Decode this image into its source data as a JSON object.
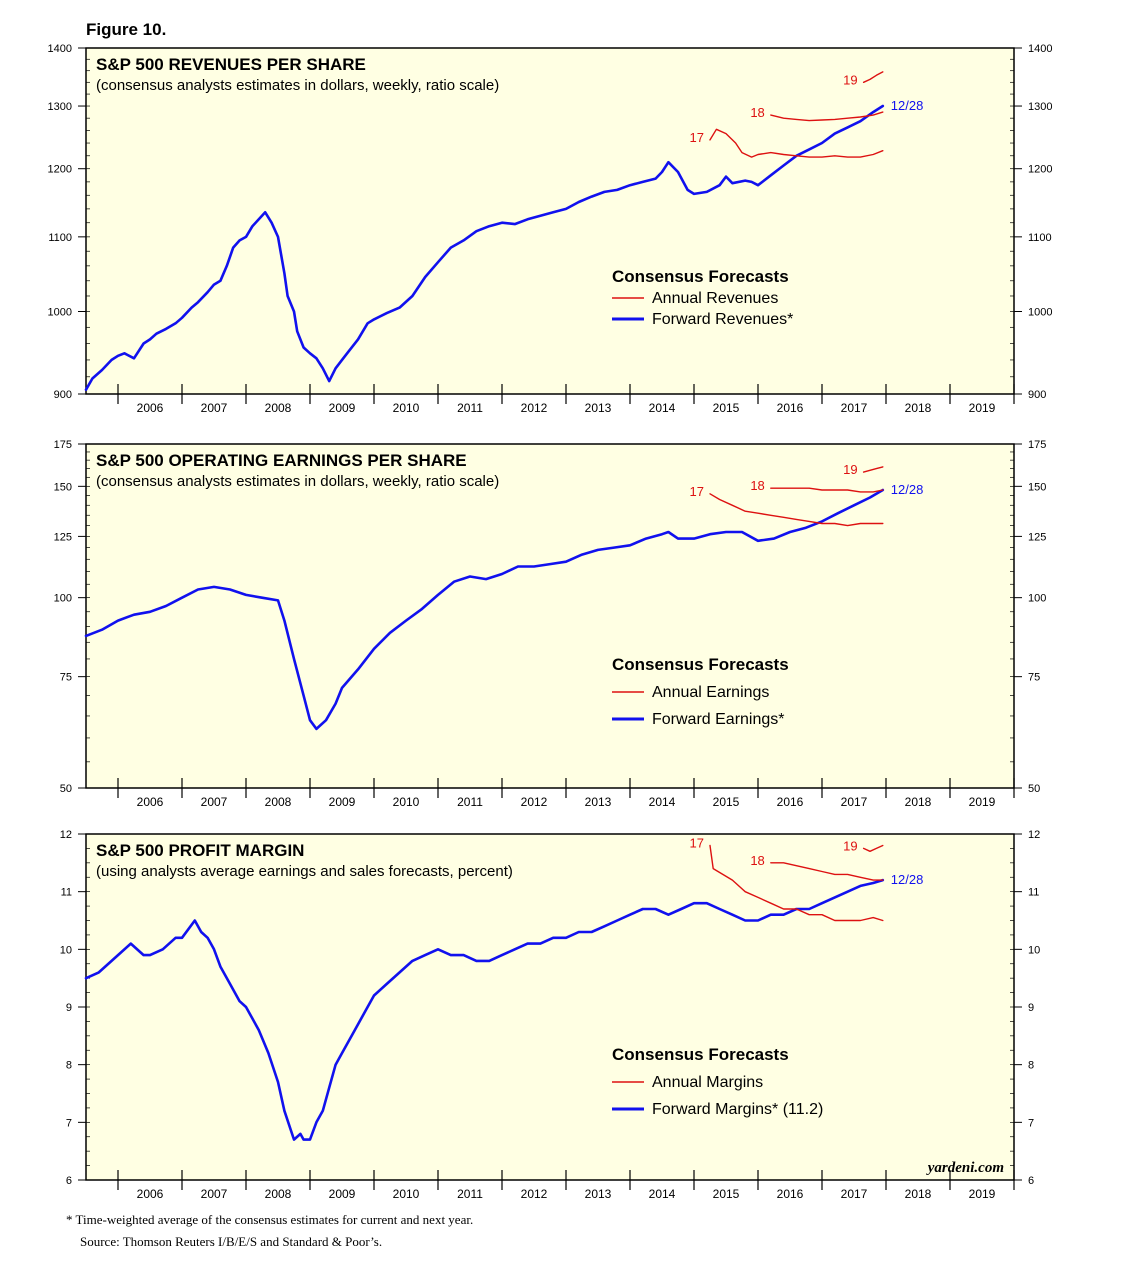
{
  "figure_label": "Figure 10.",
  "footnotes": {
    "note": "*  Time-weighted average of the consensus estimates for current and next year.",
    "source": "Source: Thomson Reuters I/B/E/S and Standard & Poor’s."
  },
  "watermark": "yardeni.com",
  "colors": {
    "annual": "#dd1111",
    "forward": "#1111ee",
    "plot_bg": "#ffffe3",
    "frame": "#000000"
  },
  "chart_data": [
    {
      "id": "revenues",
      "type": "line",
      "title": "S&P 500 REVENUES PER SHARE",
      "subtitle": "(consensus analysts estimates in dollars, weekly, ratio scale)",
      "scale": "log",
      "ylim": [
        900,
        1400
      ],
      "yticks": [
        900,
        1000,
        1100,
        1200,
        1300,
        1400
      ],
      "xlim": [
        2005.5,
        2020.0
      ],
      "xlabels": [
        "2006",
        "2007",
        "2008",
        "2009",
        "2010",
        "2011",
        "2012",
        "2013",
        "2014",
        "2015",
        "2016",
        "2017",
        "2018",
        "2019"
      ],
      "legend": {
        "title": "Consensus Forecasts",
        "annual_label": "Annual Revenues",
        "forward_label": "Forward Revenues*"
      },
      "series": [
        {
          "name": "Forward Revenues",
          "role": "forward",
          "x": [
            2005.5,
            2005.6,
            2005.75,
            2005.9,
            2006.0,
            2006.1,
            2006.25,
            2006.4,
            2006.5,
            2006.6,
            2006.75,
            2006.9,
            2007.0,
            2007.15,
            2007.25,
            2007.4,
            2007.5,
            2007.6,
            2007.7,
            2007.8,
            2007.9,
            2008.0,
            2008.1,
            2008.2,
            2008.3,
            2008.4,
            2008.5,
            2008.6,
            2008.65,
            2008.75,
            2008.8,
            2008.9,
            2009.0,
            2009.1,
            2009.2,
            2009.3,
            2009.4,
            2009.5,
            2009.6,
            2009.75,
            2009.9,
            2010.0,
            2010.2,
            2010.4,
            2010.6,
            2010.8,
            2011.0,
            2011.2,
            2011.4,
            2011.6,
            2011.8,
            2012.0,
            2012.2,
            2012.4,
            2012.6,
            2012.8,
            2013.0,
            2013.2,
            2013.4,
            2013.6,
            2013.8,
            2014.0,
            2014.2,
            2014.4,
            2014.5,
            2014.6,
            2014.75,
            2014.9,
            2015.0,
            2015.2,
            2015.4,
            2015.5,
            2015.6,
            2015.8,
            2015.9,
            2016.0,
            2016.2,
            2016.4,
            2016.6,
            2016.8,
            2017.0,
            2017.2,
            2017.4,
            2017.6,
            2017.8,
            2017.95
          ],
          "y": [
            905,
            918,
            928,
            940,
            945,
            948,
            942,
            960,
            965,
            972,
            978,
            985,
            992,
            1005,
            1012,
            1025,
            1035,
            1040,
            1060,
            1085,
            1095,
            1100,
            1115,
            1125,
            1135,
            1120,
            1100,
            1050,
            1020,
            1000,
            975,
            955,
            948,
            942,
            930,
            915,
            930,
            940,
            950,
            965,
            985,
            990,
            998,
            1005,
            1020,
            1045,
            1065,
            1085,
            1095,
            1108,
            1115,
            1120,
            1118,
            1125,
            1130,
            1135,
            1140,
            1150,
            1158,
            1165,
            1168,
            1175,
            1180,
            1185,
            1195,
            1210,
            1195,
            1168,
            1162,
            1165,
            1175,
            1188,
            1178,
            1182,
            1180,
            1175,
            1190,
            1205,
            1220,
            1230,
            1240,
            1255,
            1265,
            1275,
            1290,
            1300
          ]
        },
        {
          "name": "Annual Revenues 17",
          "role": "annual",
          "label": "17",
          "x": [
            2015.25,
            2015.35,
            2015.5,
            2015.65,
            2015.75,
            2015.9,
            2016.0,
            2016.2,
            2016.4,
            2016.6,
            2016.8,
            2017.0,
            2017.2,
            2017.4,
            2017.6,
            2017.8,
            2017.95
          ],
          "y": [
            1245,
            1262,
            1255,
            1240,
            1225,
            1218,
            1222,
            1225,
            1222,
            1220,
            1218,
            1218,
            1220,
            1218,
            1218,
            1222,
            1228
          ]
        },
        {
          "name": "Annual Revenues 18",
          "role": "annual",
          "label": "18",
          "x": [
            2016.2,
            2016.4,
            2016.6,
            2016.8,
            2017.0,
            2017.2,
            2017.4,
            2017.6,
            2017.8,
            2017.95
          ],
          "y": [
            1285,
            1280,
            1278,
            1276,
            1277,
            1278,
            1280,
            1282,
            1285,
            1290
          ]
        },
        {
          "name": "Annual Revenues 19",
          "role": "annual",
          "label": "19",
          "x": [
            2017.65,
            2017.75,
            2017.85,
            2017.95
          ],
          "y": [
            1340,
            1345,
            1352,
            1358
          ]
        }
      ],
      "forward_end_label": "12/28"
    },
    {
      "id": "earnings",
      "type": "line",
      "title": "S&P 500 OPERATING EARNINGS PER SHARE",
      "subtitle": "(consensus analysts estimates in dollars, weekly, ratio scale)",
      "scale": "log",
      "ylim": [
        50,
        175
      ],
      "yticks": [
        50,
        75,
        100,
        125,
        150,
        175
      ],
      "xlim": [
        2005.5,
        2020.0
      ],
      "xlabels": [
        "2006",
        "2007",
        "2008",
        "2009",
        "2010",
        "2011",
        "2012",
        "2013",
        "2014",
        "2015",
        "2016",
        "2017",
        "2018",
        "2019"
      ],
      "legend": {
        "title": "Consensus Forecasts",
        "annual_label": "Annual Earnings",
        "forward_label": "Forward Earnings*"
      },
      "series": [
        {
          "name": "Forward Earnings",
          "role": "forward",
          "x": [
            2005.5,
            2005.75,
            2006.0,
            2006.25,
            2006.5,
            2006.75,
            2007.0,
            2007.25,
            2007.5,
            2007.75,
            2008.0,
            2008.25,
            2008.5,
            2008.6,
            2008.75,
            2008.9,
            2009.0,
            2009.1,
            2009.25,
            2009.4,
            2009.5,
            2009.75,
            2010.0,
            2010.25,
            2010.5,
            2010.75,
            2011.0,
            2011.25,
            2011.5,
            2011.75,
            2012.0,
            2012.25,
            2012.5,
            2012.75,
            2013.0,
            2013.25,
            2013.5,
            2013.75,
            2014.0,
            2014.25,
            2014.5,
            2014.6,
            2014.75,
            2015.0,
            2015.25,
            2015.5,
            2015.75,
            2016.0,
            2016.25,
            2016.5,
            2016.75,
            2017.0,
            2017.25,
            2017.5,
            2017.75,
            2017.95
          ],
          "y": [
            87,
            89,
            92,
            94,
            95,
            97,
            100,
            103,
            104,
            103,
            101,
            100,
            99,
            92,
            80,
            70,
            64,
            62,
            64,
            68,
            72,
            77,
            83,
            88,
            92,
            96,
            101,
            106,
            108,
            107,
            109,
            112,
            112,
            113,
            114,
            117,
            119,
            120,
            121,
            124,
            126,
            127,
            124,
            124,
            126,
            127,
            127,
            123,
            124,
            127,
            129,
            132,
            136,
            140,
            144,
            148
          ]
        },
        {
          "name": "Annual Earnings 17",
          "role": "annual",
          "label": "17",
          "x": [
            2015.25,
            2015.4,
            2015.6,
            2015.8,
            2016.0,
            2016.2,
            2016.4,
            2016.6,
            2016.8,
            2017.0,
            2017.2,
            2017.4,
            2017.6,
            2017.8,
            2017.95
          ],
          "y": [
            146,
            143,
            140,
            137,
            136,
            135,
            134,
            133,
            132,
            131,
            131,
            130,
            131,
            131,
            131
          ]
        },
        {
          "name": "Annual Earnings 18",
          "role": "annual",
          "label": "18",
          "x": [
            2016.2,
            2016.4,
            2016.6,
            2016.8,
            2017.0,
            2017.2,
            2017.4,
            2017.6,
            2017.8,
            2017.95
          ],
          "y": [
            149,
            149,
            149,
            149,
            148,
            148,
            148,
            147,
            147,
            148
          ]
        },
        {
          "name": "Annual Earnings 19",
          "role": "annual",
          "label": "19",
          "x": [
            2017.65,
            2017.75,
            2017.85,
            2017.95
          ],
          "y": [
            158,
            159,
            160,
            161
          ]
        }
      ],
      "forward_end_label": "12/28"
    },
    {
      "id": "margin",
      "type": "line",
      "title": "S&P 500 PROFIT MARGIN",
      "subtitle": "(using analysts average earnings and sales forecasts, percent)",
      "scale": "linear",
      "ylim": [
        6,
        12
      ],
      "yticks": [
        6,
        7,
        8,
        9,
        10,
        11,
        12
      ],
      "xlim": [
        2005.5,
        2020.0
      ],
      "xlabels": [
        "2006",
        "2007",
        "2008",
        "2009",
        "2010",
        "2011",
        "2012",
        "2013",
        "2014",
        "2015",
        "2016",
        "2017",
        "2018",
        "2019"
      ],
      "legend": {
        "title": "Consensus Forecasts",
        "annual_label": "Annual Margins",
        "forward_label": "Forward Margins* (11.2)"
      },
      "series": [
        {
          "name": "Forward Margins",
          "role": "forward",
          "x": [
            2005.5,
            2005.7,
            2005.9,
            2006.0,
            2006.2,
            2006.4,
            2006.5,
            2006.7,
            2006.9,
            2007.0,
            2007.2,
            2007.3,
            2007.4,
            2007.5,
            2007.6,
            2007.75,
            2007.9,
            2008.0,
            2008.1,
            2008.2,
            2008.35,
            2008.5,
            2008.6,
            2008.75,
            2008.85,
            2008.9,
            2009.0,
            2009.1,
            2009.2,
            2009.3,
            2009.4,
            2009.5,
            2009.7,
            2009.9,
            2010.0,
            2010.2,
            2010.4,
            2010.6,
            2010.8,
            2011.0,
            2011.2,
            2011.4,
            2011.6,
            2011.8,
            2012.0,
            2012.2,
            2012.4,
            2012.6,
            2012.8,
            2013.0,
            2013.2,
            2013.4,
            2013.6,
            2013.8,
            2014.0,
            2014.2,
            2014.4,
            2014.6,
            2014.8,
            2015.0,
            2015.2,
            2015.4,
            2015.6,
            2015.8,
            2016.0,
            2016.2,
            2016.4,
            2016.6,
            2016.8,
            2017.0,
            2017.2,
            2017.4,
            2017.6,
            2017.8,
            2017.95
          ],
          "y": [
            9.5,
            9.6,
            9.8,
            9.9,
            10.1,
            9.9,
            9.9,
            10.0,
            10.2,
            10.2,
            10.5,
            10.3,
            10.2,
            10.0,
            9.7,
            9.4,
            9.1,
            9.0,
            8.8,
            8.6,
            8.2,
            7.7,
            7.2,
            6.7,
            6.8,
            6.7,
            6.7,
            7.0,
            7.2,
            7.6,
            8.0,
            8.2,
            8.6,
            9.0,
            9.2,
            9.4,
            9.6,
            9.8,
            9.9,
            10.0,
            9.9,
            9.9,
            9.8,
            9.8,
            9.9,
            10.0,
            10.1,
            10.1,
            10.2,
            10.2,
            10.3,
            10.3,
            10.4,
            10.5,
            10.6,
            10.7,
            10.7,
            10.6,
            10.7,
            10.8,
            10.8,
            10.7,
            10.6,
            10.5,
            10.5,
            10.6,
            10.6,
            10.7,
            10.7,
            10.8,
            10.9,
            11.0,
            11.1,
            11.15,
            11.2
          ]
        },
        {
          "name": "Annual Margins 17",
          "role": "annual",
          "label": "17",
          "x": [
            2015.25,
            2015.3,
            2015.45,
            2015.6,
            2015.8,
            2016.0,
            2016.2,
            2016.4,
            2016.6,
            2016.8,
            2017.0,
            2017.2,
            2017.4,
            2017.6,
            2017.8,
            2017.95
          ],
          "y": [
            11.8,
            11.4,
            11.3,
            11.2,
            11.0,
            10.9,
            10.8,
            10.7,
            10.7,
            10.6,
            10.6,
            10.5,
            10.5,
            10.5,
            10.55,
            10.5
          ]
        },
        {
          "name": "Annual Margins 18",
          "role": "annual",
          "label": "18",
          "x": [
            2016.2,
            2016.4,
            2016.6,
            2016.8,
            2017.0,
            2017.2,
            2017.4,
            2017.6,
            2017.8,
            2017.95
          ],
          "y": [
            11.5,
            11.5,
            11.45,
            11.4,
            11.35,
            11.3,
            11.3,
            11.25,
            11.2,
            11.2
          ]
        },
        {
          "name": "Annual Margins 19",
          "role": "annual",
          "label": "19",
          "x": [
            2017.65,
            2017.75,
            2017.85,
            2017.95
          ],
          "y": [
            11.75,
            11.7,
            11.75,
            11.8
          ]
        }
      ],
      "forward_end_label": "12/28"
    }
  ]
}
